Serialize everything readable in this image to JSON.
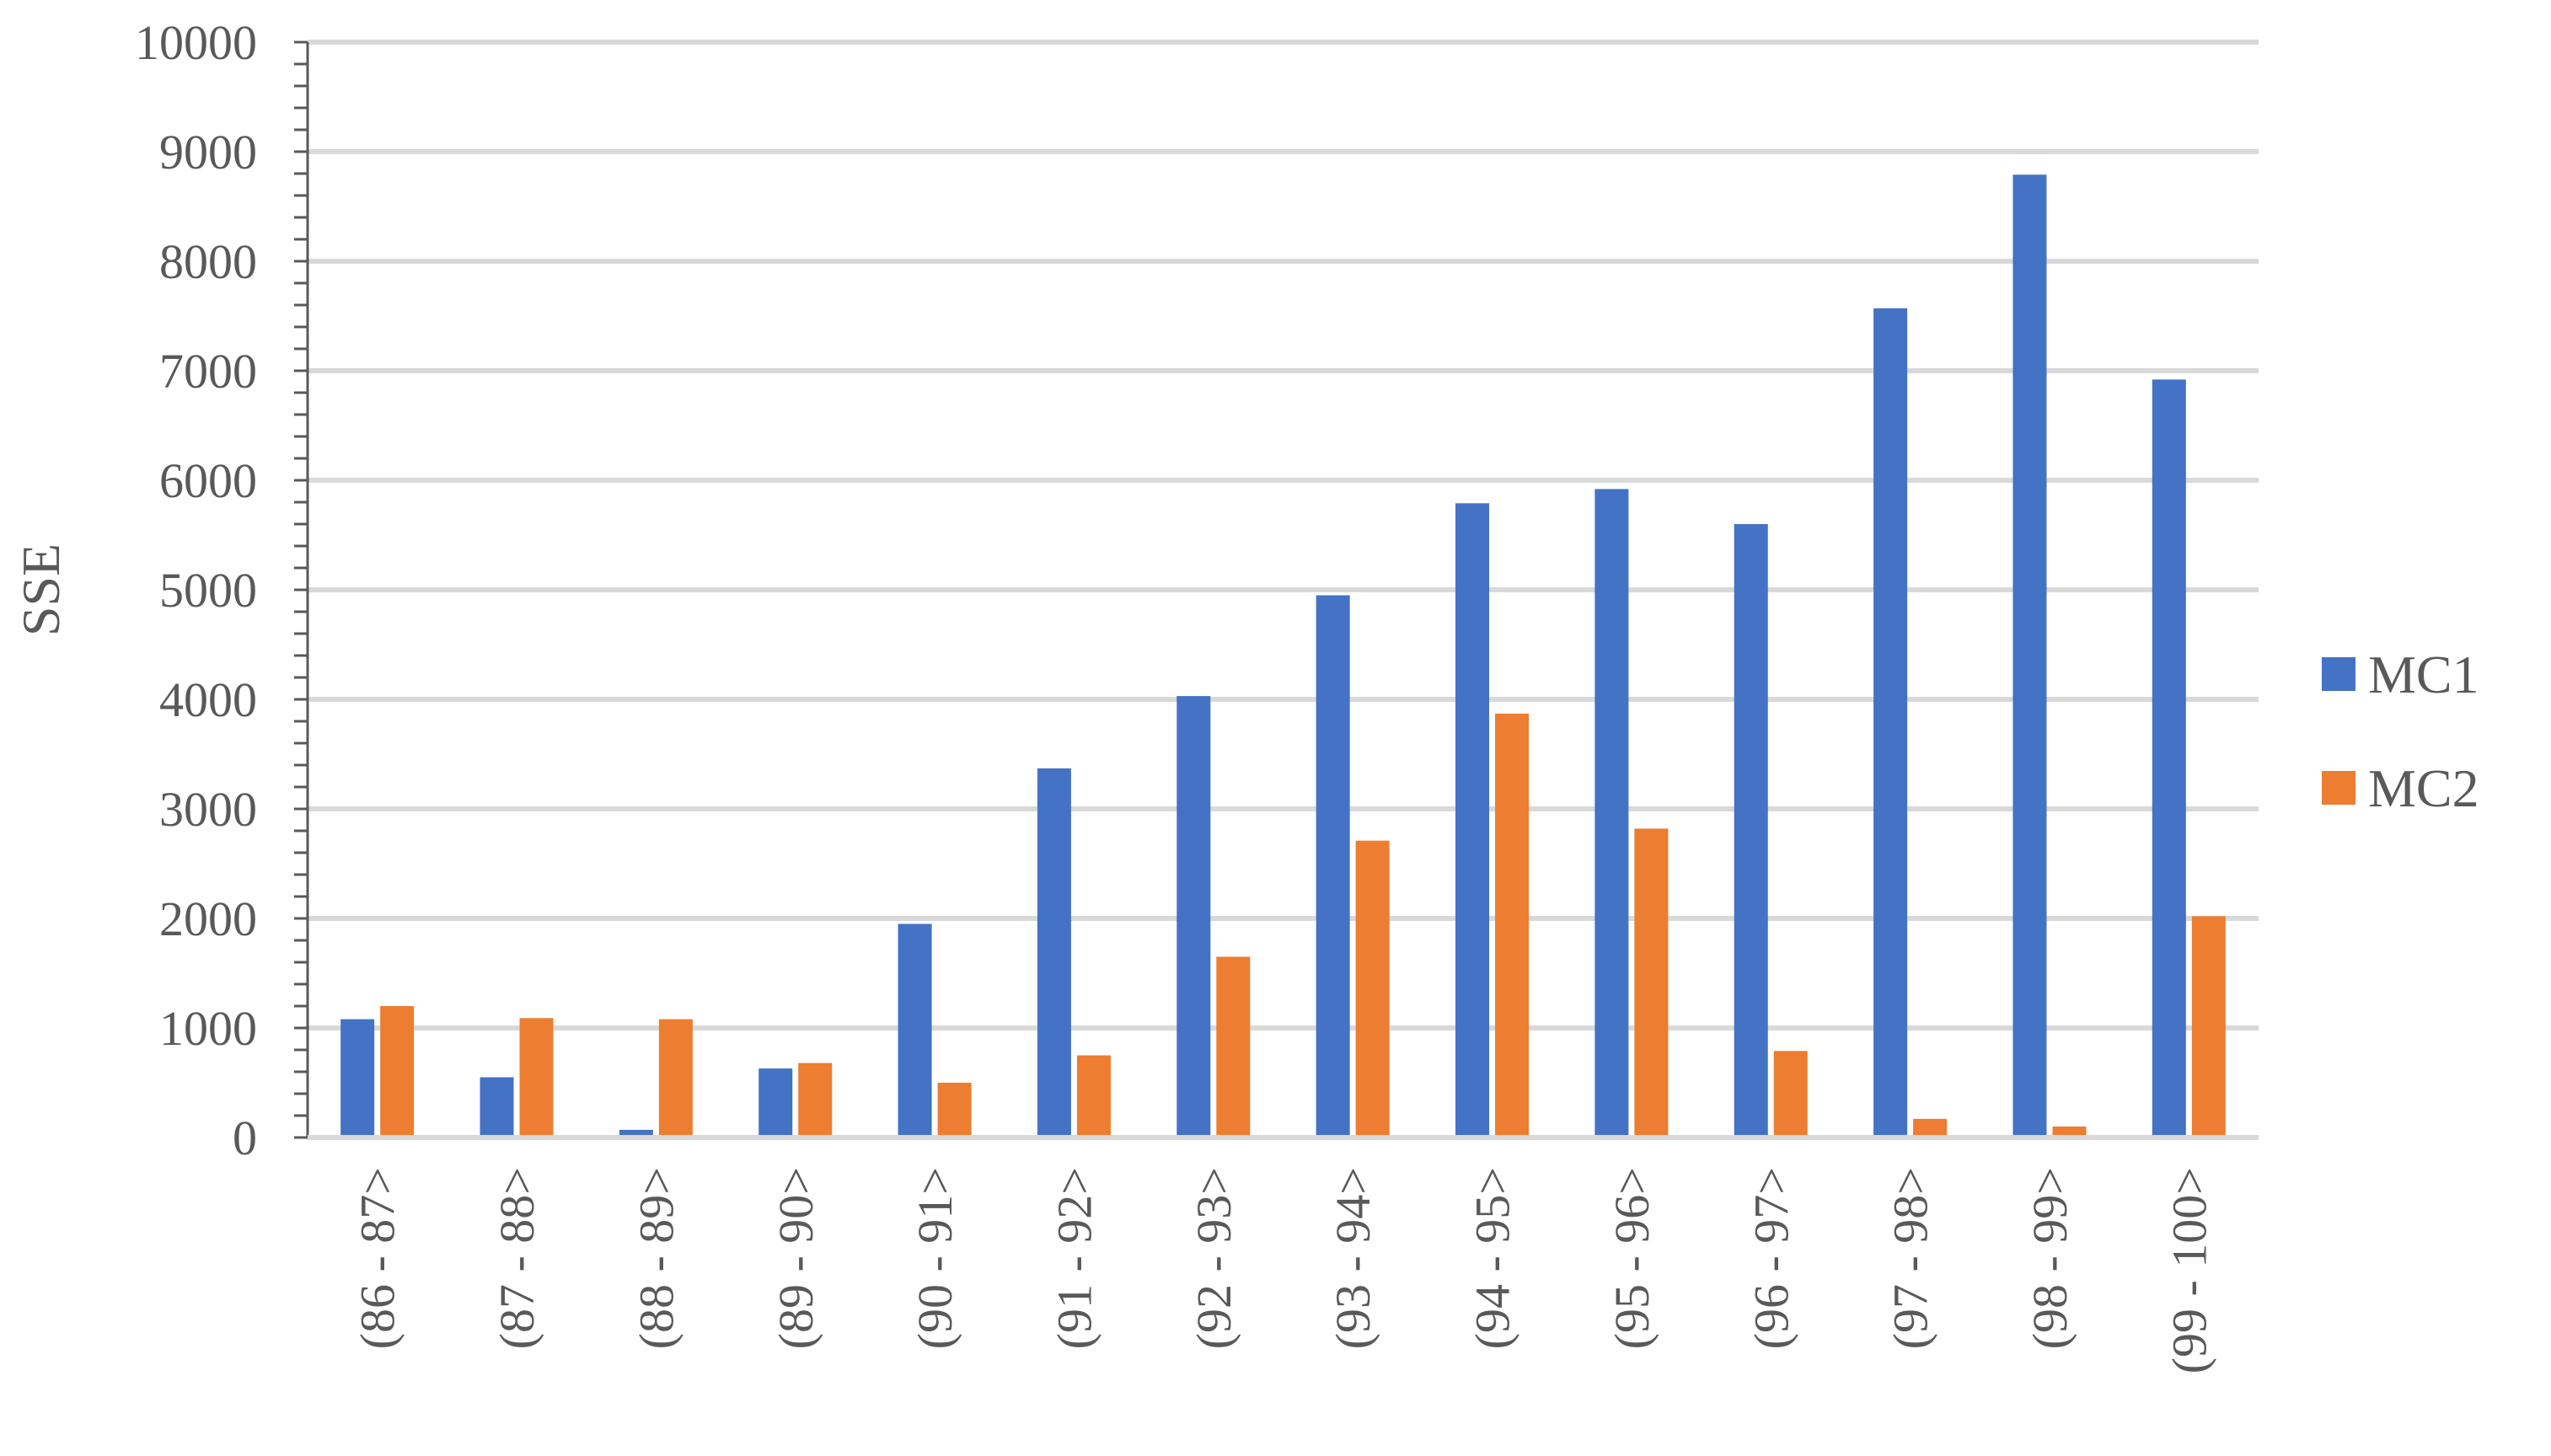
{
  "chart_data": {
    "type": "bar",
    "title": "",
    "xlabel": "",
    "ylabel": "SSE",
    "ylim": [
      0,
      10000
    ],
    "yticks": [
      0,
      1000,
      2000,
      3000,
      4000,
      5000,
      6000,
      7000,
      8000,
      9000,
      10000
    ],
    "grid": true,
    "legend_position": "right",
    "categories": [
      "(86 - 87>",
      "(87 - 88>",
      "(88 - 89>",
      "(89 - 90>",
      "(90 - 91>",
      "(91 - 92>",
      "(92 - 93>",
      "(93 - 94>",
      "(94 - 95>",
      "(95 - 96>",
      "(96 - 97>",
      "(97 - 98>",
      "(98 - 99>",
      "(99 - 100>"
    ],
    "series": [
      {
        "name": "MC1",
        "color": "#4472c4",
        "values": [
          1080,
          550,
          70,
          630,
          1950,
          3370,
          4030,
          4950,
          5790,
          5920,
          5600,
          7570,
          8790,
          6920
        ]
      },
      {
        "name": "MC2",
        "color": "#ed7d31",
        "values": [
          1200,
          1090,
          1080,
          680,
          500,
          750,
          1650,
          2710,
          3870,
          2820,
          790,
          170,
          100,
          2020
        ]
      }
    ]
  }
}
